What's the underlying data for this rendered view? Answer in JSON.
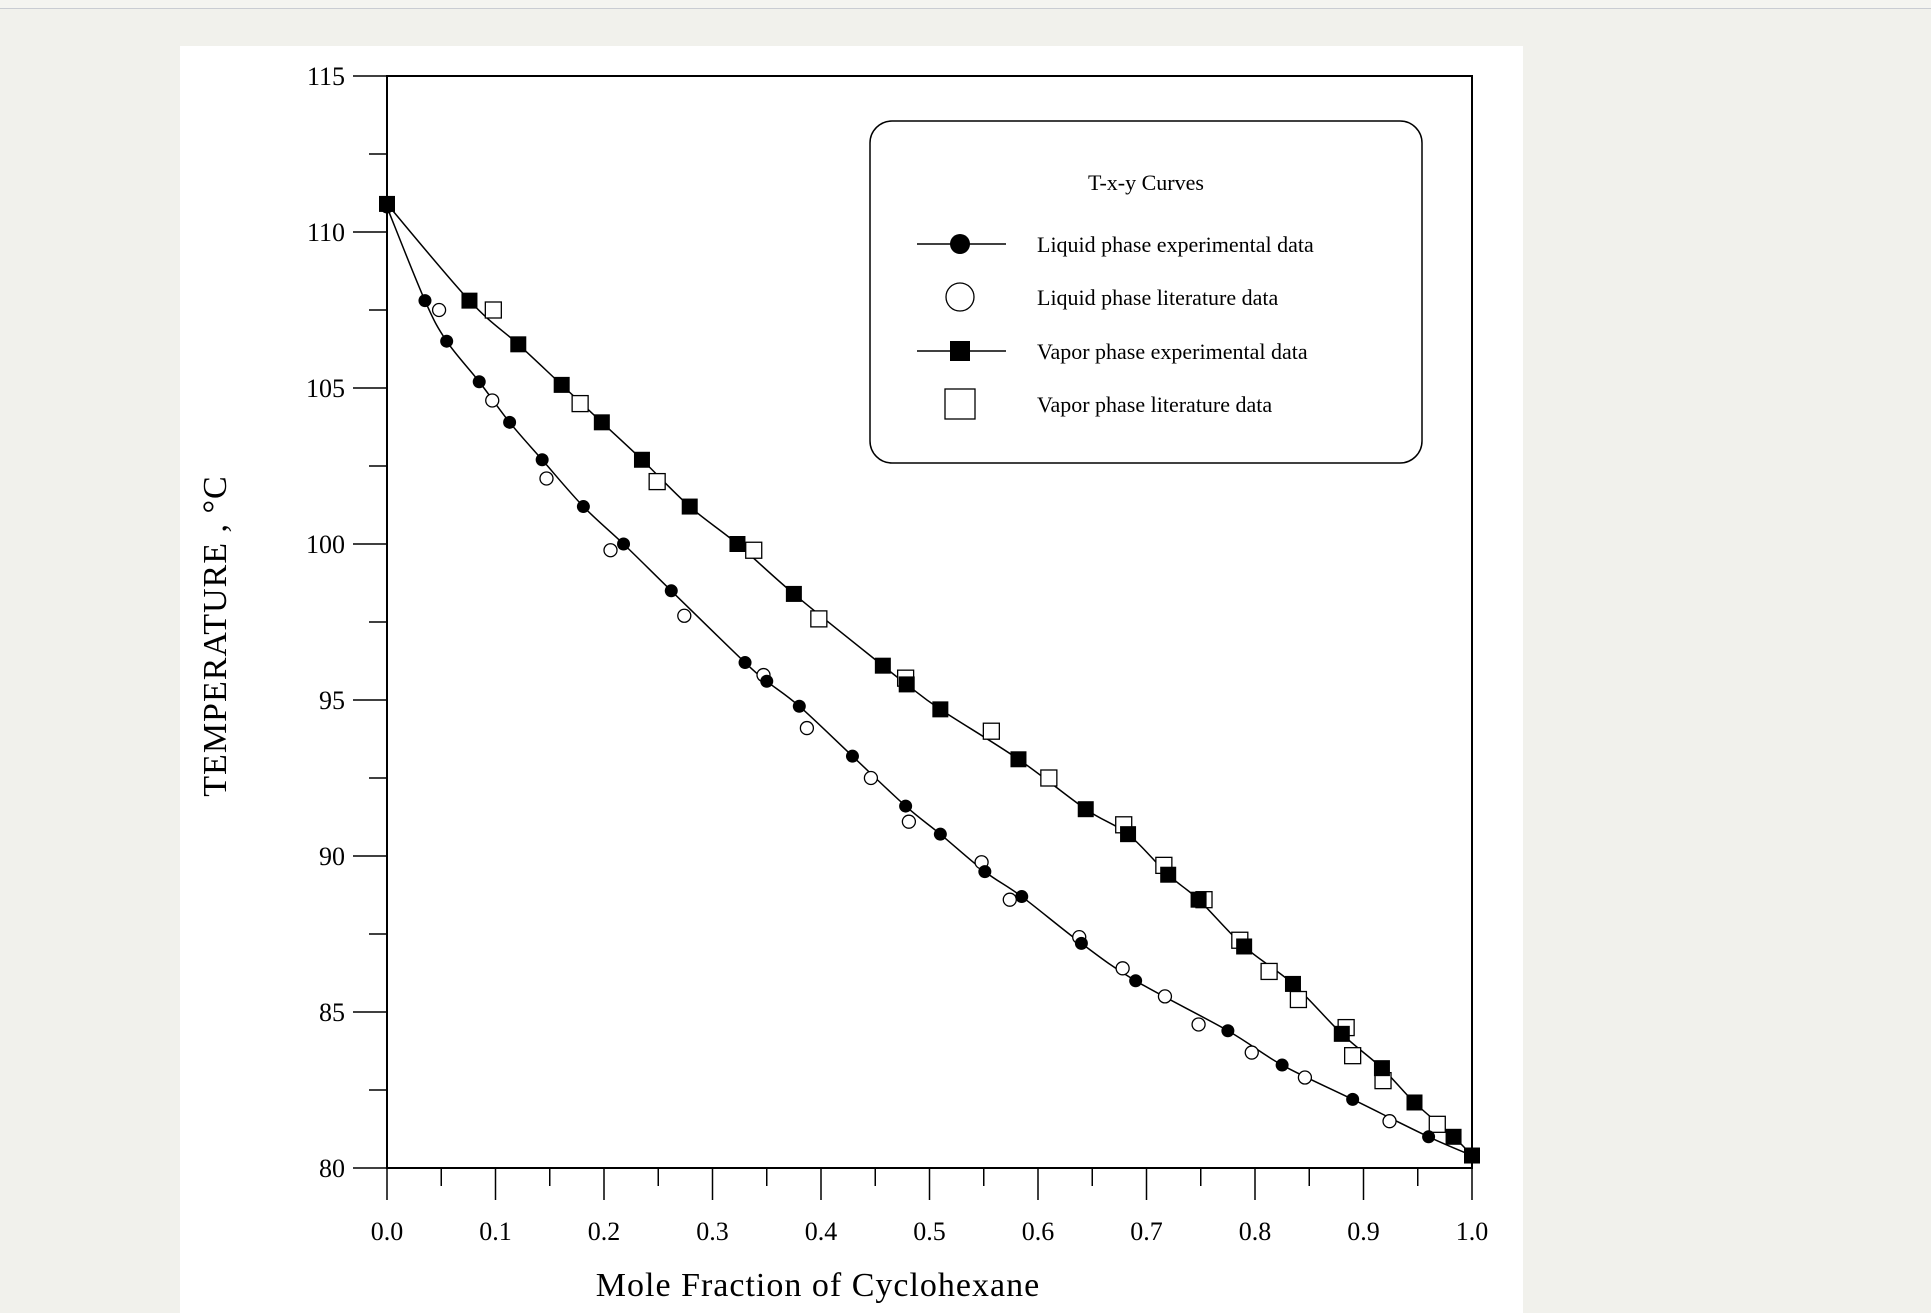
{
  "chart_data": {
    "type": "scatter",
    "title": "",
    "xlabel": "Mole Fraction of Cyclohexane",
    "ylabel": "TEMPERATURE , °C",
    "xlim": [
      0.0,
      1.0
    ],
    "ylim": [
      80,
      115
    ],
    "x_ticks": [
      "0.0",
      "0.1",
      "0.2",
      "0.3",
      "0.4",
      "0.5",
      "0.6",
      "0.7",
      "0.8",
      "0.9",
      "1.0"
    ],
    "x_tick_values": [
      0.0,
      0.1,
      0.2,
      0.3,
      0.4,
      0.5,
      0.6,
      0.7,
      0.8,
      0.9,
      1.0
    ],
    "y_ticks": [
      "80",
      "85",
      "90",
      "95",
      "100",
      "105",
      "110",
      "115"
    ],
    "y_tick_values": [
      80,
      85,
      90,
      95,
      100,
      105,
      110,
      115
    ],
    "grid": false,
    "legend": {
      "title": "T-x-y Curves",
      "placement": "top-right"
    },
    "series": [
      {
        "name": "Liquid phase experimental data",
        "marker": "filled-circle",
        "line": true,
        "x": [
          0.0,
          0.035,
          0.055,
          0.085,
          0.113,
          0.143,
          0.181,
          0.218,
          0.262,
          0.33,
          0.35,
          0.38,
          0.429,
          0.478,
          0.51,
          0.551,
          0.585,
          0.64,
          0.69,
          0.775,
          0.825,
          0.89,
          0.96,
          1.0
        ],
        "y": [
          110.8,
          107.8,
          106.5,
          105.2,
          103.9,
          102.7,
          101.2,
          100.0,
          98.5,
          96.2,
          95.6,
          94.8,
          93.2,
          91.6,
          90.7,
          89.5,
          88.7,
          87.2,
          86.0,
          84.4,
          83.3,
          82.2,
          81.0,
          80.4
        ]
      },
      {
        "name": "Liquid phase literature data",
        "marker": "open-circle",
        "line": false,
        "x": [
          0.048,
          0.097,
          0.147,
          0.206,
          0.274,
          0.347,
          0.387,
          0.446,
          0.481,
          0.548,
          0.574,
          0.638,
          0.678,
          0.717,
          0.748,
          0.797,
          0.846,
          0.924
        ],
        "y": [
          107.5,
          104.6,
          102.1,
          99.8,
          97.7,
          95.8,
          94.1,
          92.5,
          91.1,
          89.8,
          88.6,
          87.4,
          86.4,
          85.5,
          84.6,
          83.7,
          82.9,
          81.5
        ]
      },
      {
        "name": "Vapor phase experimental data",
        "marker": "filled-square",
        "line": true,
        "x": [
          0.0,
          0.076,
          0.121,
          0.161,
          0.198,
          0.235,
          0.279,
          0.323,
          0.375,
          0.457,
          0.479,
          0.51,
          0.582,
          0.644,
          0.683,
          0.72,
          0.748,
          0.79,
          0.835,
          0.88,
          0.917,
          0.947,
          0.983,
          1.0
        ],
        "y": [
          110.9,
          107.8,
          106.4,
          105.1,
          103.9,
          102.7,
          101.2,
          100.0,
          98.4,
          96.1,
          95.5,
          94.7,
          93.1,
          91.5,
          90.7,
          89.4,
          88.6,
          87.1,
          85.9,
          84.3,
          83.2,
          82.1,
          81.0,
          80.4
        ]
      },
      {
        "name": "Vapor phase literature data",
        "marker": "open-square",
        "line": false,
        "x": [
          0.098,
          0.178,
          0.249,
          0.338,
          0.398,
          0.478,
          0.557,
          0.61,
          0.679,
          0.716,
          0.753,
          0.786,
          0.813,
          0.84,
          0.884,
          0.89,
          0.918,
          0.968
        ],
        "y": [
          107.5,
          104.5,
          102.0,
          99.8,
          97.6,
          95.7,
          94.0,
          92.5,
          91.0,
          89.7,
          88.6,
          87.3,
          86.3,
          85.4,
          84.5,
          83.6,
          82.8,
          81.4
        ]
      }
    ]
  }
}
